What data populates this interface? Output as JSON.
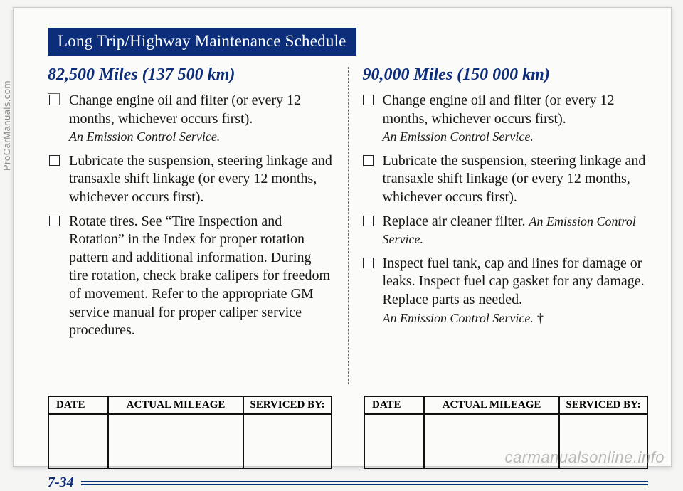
{
  "title_bar": "Long Trip/Highway Maintenance Schedule",
  "left": {
    "heading": "82,500 Miles (137 500 km)",
    "items": [
      {
        "text": "Change engine oil and filter (or every 12 months, whichever occurs first).",
        "note": "An Emission Control Service.",
        "shadow": true
      },
      {
        "text": "Lubricate the suspension, steering linkage and transaxle shift linkage (or every 12 months, whichever occurs first)."
      },
      {
        "text": "Rotate tires. See “Tire Inspection and Rotation” in the Index for proper rotation pattern and additional information. During tire rotation, check brake calipers for freedom of movement. Refer to the appropriate GM service manual for proper caliper service procedures."
      }
    ]
  },
  "right": {
    "heading": "90,000 Miles (150 000 km)",
    "items": [
      {
        "text": "Change engine oil and filter (or every 12 months, whichever occurs first).",
        "note": "An Emission Control Service."
      },
      {
        "text": "Lubricate the suspension, steering linkage and transaxle shift linkage (or every 12 months, whichever occurs first)."
      },
      {
        "text": "Replace air cleaner filter.",
        "note_inline": "An Emission Control Service."
      },
      {
        "text": "Inspect fuel tank, cap and lines for damage or leaks. Inspect fuel cap gasket for any damage. Replace parts as needed.",
        "note": "An Emission Control Service.",
        "dagger": "†"
      }
    ]
  },
  "table_headers": {
    "date": "DATE",
    "mileage": "ACTUAL MILEAGE",
    "serviced": "SERVICED BY:"
  },
  "page_number": "7-34",
  "sidetext": "ProCarManuals.com",
  "watermark": "carmanualsonline.info",
  "colors": {
    "brand_blue": "#0b2d7a",
    "page_bg": "#fbfbfa",
    "body_bg": "#f5f5f4",
    "text": "#171717",
    "side_gray": "#8a8a8a"
  }
}
